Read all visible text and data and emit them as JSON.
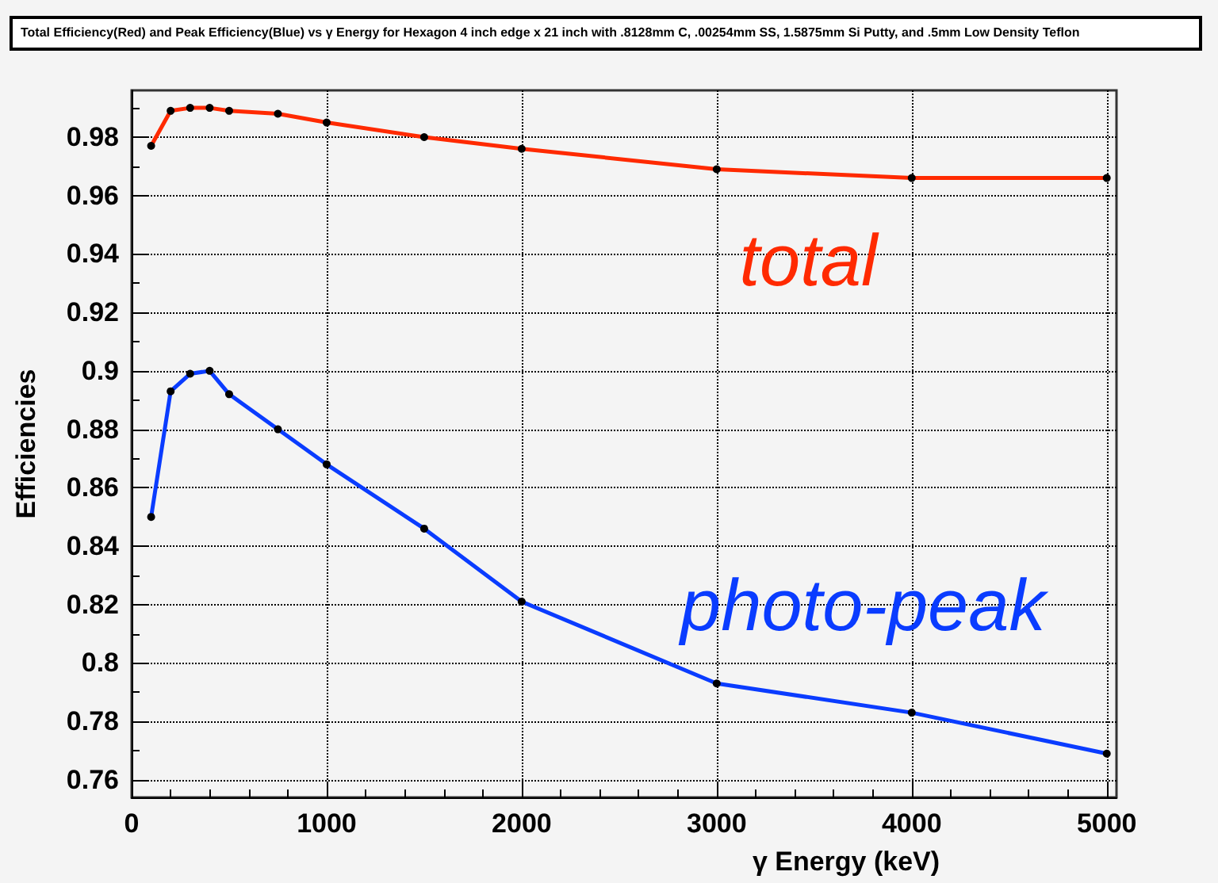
{
  "chart_data": {
    "type": "line",
    "title": "Total Efficiency(Red) and Peak Efficiency(Blue) vs γ Energy for Hexagon 4 inch edge x 21 inch with .8128mm C, .00254mm SS, 1.5875mm Si Putty, and .5mm Low Density Teflon",
    "xlabel": "γ Energy (keV)",
    "ylabel": "Efficiencies",
    "x": [
      100,
      200,
      300,
      400,
      500,
      750,
      1000,
      1500,
      2000,
      3000,
      4000,
      5000
    ],
    "series": [
      {
        "name": "total",
        "color": "#ff2a00",
        "values": [
          0.977,
          0.989,
          0.99,
          0.99,
          0.989,
          0.988,
          0.985,
          0.98,
          0.976,
          0.969,
          0.966,
          0.966
        ]
      },
      {
        "name": "photo-peak",
        "color": "#0a3cff",
        "values": [
          0.85,
          0.893,
          0.899,
          0.9,
          0.892,
          0.88,
          0.868,
          0.846,
          0.821,
          0.793,
          0.783,
          0.769
        ]
      }
    ],
    "xlim": [
      0,
      5050
    ],
    "xticks": [
      0,
      1000,
      2000,
      3000,
      4000,
      5000
    ],
    "ylim": [
      0.754,
      0.996
    ],
    "yticks": [
      0.76,
      0.78,
      0.8,
      0.82,
      0.84,
      0.86,
      0.88,
      0.9,
      0.92,
      0.94,
      0.96,
      0.98
    ],
    "grid": true,
    "marker": "circle",
    "line_style": "solid"
  }
}
